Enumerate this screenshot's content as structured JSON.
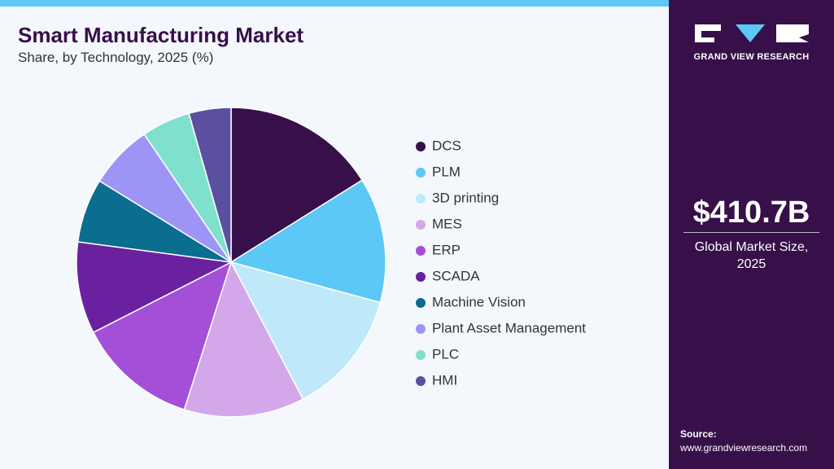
{
  "chart_data": {
    "type": "pie",
    "title": "Smart Manufacturing Market",
    "subtitle": "Share, by Technology, 2025 (%)",
    "categories": [
      "DCS",
      "PLM",
      "3D printing",
      "MES",
      "ERP",
      "SCADA",
      "Machine Vision",
      "Plant Asset Management",
      "PLC",
      "HMI"
    ],
    "values": [
      16.1,
      13.1,
      13.1,
      12.6,
      12.6,
      9.6,
      6.7,
      6.7,
      5.1,
      4.4
    ],
    "colors": [
      "#37104a",
      "#5bc8f5",
      "#bfe9f9",
      "#d4a7eb",
      "#a34fd8",
      "#6a21a0",
      "#0b6d8f",
      "#9d95f6",
      "#7fe1cd",
      "#5a509f"
    ]
  },
  "panel": {
    "brand": "GRAND VIEW RESEARCH",
    "market_size": "$410.7B",
    "market_label": "Global Market Size, 2025",
    "source_label": "Source:",
    "source_url": "www.grandviewresearch.com"
  }
}
